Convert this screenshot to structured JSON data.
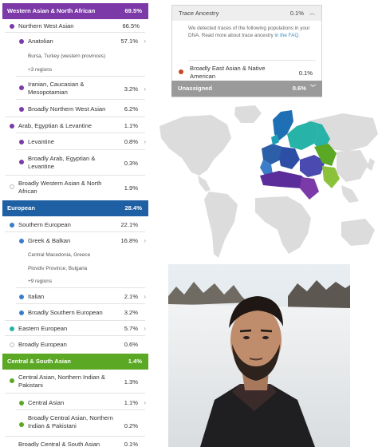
{
  "groups": [
    {
      "label": "Western Asian & North African",
      "pct": "69.5%",
      "color": "#7b3aa8"
    },
    {
      "label": "European",
      "pct": "28.4%",
      "color": "#1f5fa3"
    },
    {
      "label": "Central & South Asian",
      "pct": "1.4%",
      "color": "#5aa823"
    }
  ],
  "rows": [
    {
      "label": "Northern West Asian",
      "pct": "66.5%",
      "color": "#7b3aa8"
    },
    {
      "label": "Anatolian",
      "pct": "57.1%",
      "color": "#7b3aa8"
    },
    {
      "label": "Bursa, Turkey (western provinces)"
    },
    {
      "label": "+3 regions"
    },
    {
      "label": "Iranian, Caucasian & Mesopotamian",
      "pct": "3.2%",
      "color": "#7b3aa8"
    },
    {
      "label": "Broadly Northern West Asian",
      "pct": "6.2%",
      "color": "#7b3aa8"
    },
    {
      "label": "Arab, Egyptian & Levantine",
      "pct": "1.1%",
      "color": "#7b3aa8"
    },
    {
      "label": "Levantine",
      "pct": "0.8%",
      "color": "#7b3aa8"
    },
    {
      "label": "Broadly Arab, Egyptian & Levantine",
      "pct": "0.3%",
      "color": "#7b3aa8"
    },
    {
      "label": "Broadly Western Asian & North African",
      "pct": "1.9%"
    },
    {
      "label": "Southern European",
      "pct": "22.1%",
      "color": "#3b7dc9"
    },
    {
      "label": "Greek & Balkan",
      "pct": "16.8%",
      "color": "#3b7dc9"
    },
    {
      "label": "Central Macedonia, Greece"
    },
    {
      "label": "Plovdiv Province, Bulgaria"
    },
    {
      "label": "+9 regions"
    },
    {
      "label": "Italian",
      "pct": "2.1%",
      "color": "#3b7dc9"
    },
    {
      "label": "Broadly Southern European",
      "pct": "3.2%",
      "color": "#3b7dc9"
    },
    {
      "label": "Eastern European",
      "pct": "5.7%",
      "color": "#27b3a8"
    },
    {
      "label": "Broadly European",
      "pct": "0.6%"
    },
    {
      "label": "Central Asian, Northern Indian & Pakistani",
      "pct": "1.3%",
      "color": "#5aa823"
    },
    {
      "label": "Central Asian",
      "pct": "1.1%",
      "color": "#5aa823"
    },
    {
      "label": "Broadly Central Asian, Northern Indian & Pakistani",
      "pct": "0.2%",
      "color": "#5aa823"
    },
    {
      "label": "Broadly Central & South Asian",
      "pct": "0.1%"
    }
  ],
  "trace": {
    "title": "Trace Ancestry",
    "pct": "0.1%",
    "desc": "We detected traces of the following populations in your DNA. Read more about trace ancestry ",
    "link": "in the FAQ.",
    "item_label": "Broadly East Asian & Native American",
    "item_pct": "0.1%",
    "item_color": "#c94724"
  },
  "unassigned": {
    "label": "Unassigned",
    "pct": "0.6%"
  },
  "icons": {
    "chevron_right": "›",
    "chevron_up": "︿",
    "chevron_down": "﹀"
  }
}
